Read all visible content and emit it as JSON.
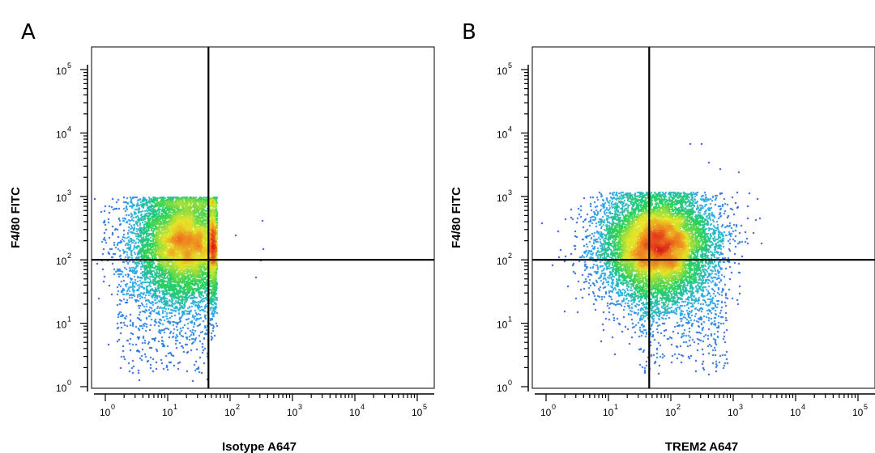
{
  "chart_data": [
    {
      "type": "scatter",
      "panel_label": "A",
      "title": "",
      "xlabel": "Isotype A647",
      "ylabel": "F4/80 FITC",
      "x_scale": "log",
      "y_scale": "log",
      "xlim": [
        0.7,
        130000
      ],
      "ylim": [
        0.8,
        160000
      ],
      "x_ticks": [
        1,
        10,
        100,
        1000,
        10000,
        100000
      ],
      "y_ticks": [
        1,
        10,
        100,
        1000,
        10000,
        100000
      ],
      "tick_base": "10",
      "tick_exponents": [
        "0",
        "1",
        "2",
        "3",
        "4",
        "5"
      ],
      "gate_x": 45,
      "gate_y": 100,
      "grid": false,
      "density": "pseudocolor (blue low → green → yellow → red high)",
      "populations": [
        {
          "center_x": 18,
          "center_y": 220,
          "spread_log_x": 0.42,
          "spread_log_y": 0.42,
          "max_x": 60,
          "max_y": 1000,
          "n": 9000
        }
      ],
      "tail_population": {
        "x_range": [
          1.5,
          45
        ],
        "y_range": [
          1.2,
          40
        ],
        "n": 450
      },
      "outliers": [
        [
          300,
          100
        ],
        [
          250,
          55
        ],
        [
          330,
          150
        ],
        [
          320,
          420
        ],
        [
          120,
          250
        ]
      ]
    },
    {
      "type": "scatter",
      "panel_label": "B",
      "title": "",
      "xlabel": "TREM2 A647",
      "ylabel": "F4/80 FITC",
      "x_scale": "log",
      "y_scale": "log",
      "xlim": [
        0.7,
        130000
      ],
      "ylim": [
        0.8,
        160000
      ],
      "x_ticks": [
        1,
        10,
        100,
        1000,
        10000,
        100000
      ],
      "y_ticks": [
        1,
        10,
        100,
        1000,
        10000,
        100000
      ],
      "tick_base": "10",
      "tick_exponents": [
        "0",
        "1",
        "2",
        "3",
        "4",
        "5"
      ],
      "gate_x": 45,
      "gate_y": 100,
      "grid": false,
      "density": "pseudocolor (blue low → green → yellow → red high)",
      "populations": [
        {
          "center_x": 60,
          "center_y": 200,
          "spread_log_x": 0.45,
          "spread_log_y": 0.4,
          "max_x": 3000,
          "max_y": 1200,
          "n": 11000
        }
      ],
      "tail_population": {
        "x_range": [
          30,
          800
        ],
        "y_range": [
          1.5,
          40
        ],
        "n": 400
      },
      "outliers": [
        [
          200,
          7000
        ],
        [
          300,
          7000
        ],
        [
          1200,
          2500
        ],
        [
          600,
          2800
        ],
        [
          8,
          8
        ],
        [
          5,
          40
        ],
        [
          3,
          400
        ],
        [
          2,
          450
        ],
        [
          400,
          3500
        ],
        [
          1500,
          200
        ]
      ]
    }
  ]
}
